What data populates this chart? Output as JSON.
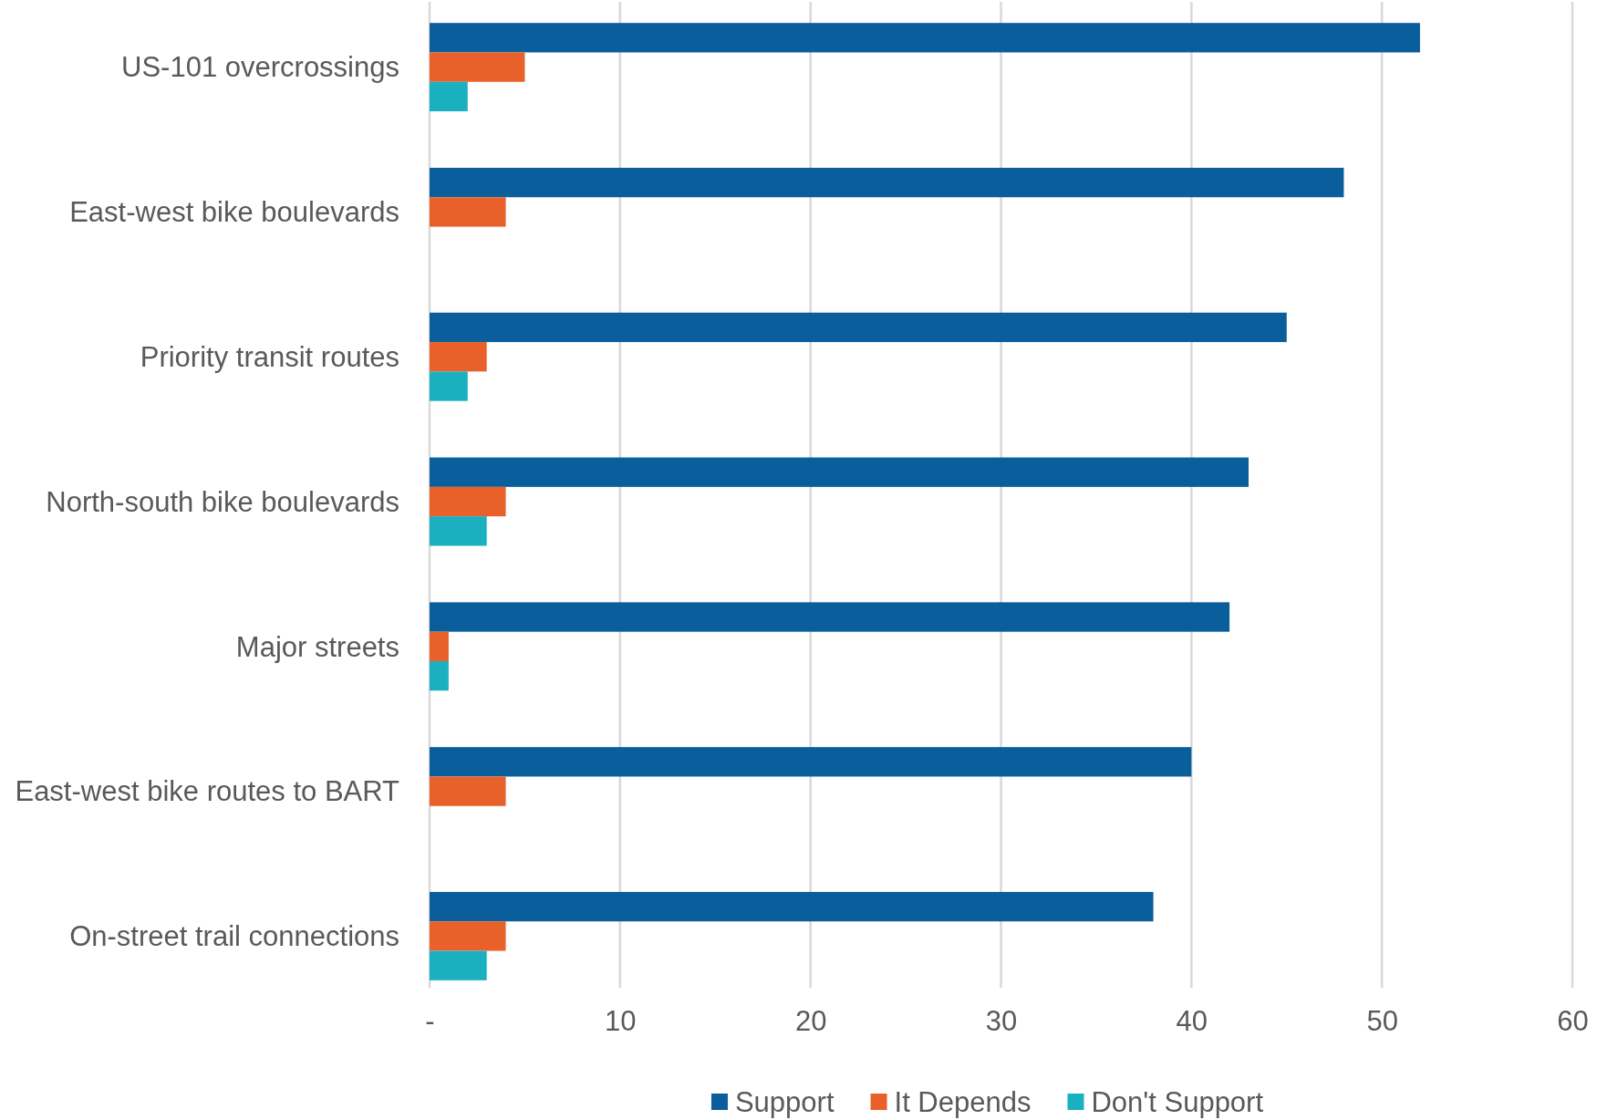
{
  "chart_data": {
    "type": "bar",
    "orientation": "horizontal",
    "categories": [
      "US-101 overcrossings",
      "East-west bike boulevards",
      "Priority transit routes",
      "North-south bike boulevards",
      "Major streets",
      "East-west bike routes to BART",
      "On-street trail connections"
    ],
    "series": [
      {
        "name": "Support",
        "color": "#0a5e9c",
        "values": [
          52,
          48,
          45,
          43,
          42,
          40,
          38
        ]
      },
      {
        "name": "It Depends",
        "color": "#e8602a",
        "values": [
          5,
          4,
          3,
          4,
          1,
          4,
          4
        ]
      },
      {
        "name": "Don't Support",
        "color": "#1ab0c0",
        "values": [
          2,
          null,
          2,
          3,
          1,
          null,
          3
        ]
      }
    ],
    "xlim": [
      0,
      60
    ],
    "xticks": [
      {
        "value": 0,
        "label": "-"
      },
      10,
      20,
      30,
      40,
      50,
      60
    ],
    "grid": "x",
    "legend": "bottom"
  }
}
